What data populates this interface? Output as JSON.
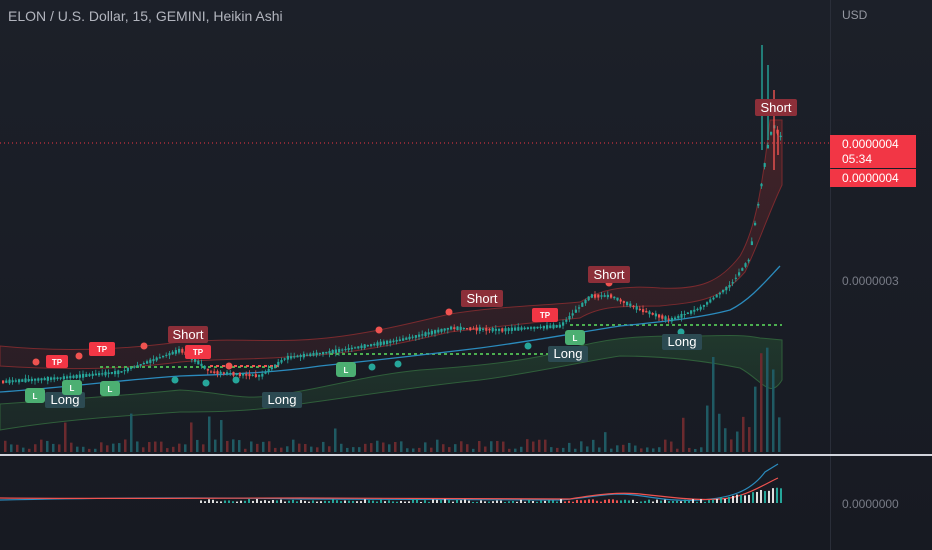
{
  "header": {
    "title": "ELON / U.S. Dollar, 15, GEMINI, Heikin Ashi"
  },
  "price_axis": {
    "currency": "USD",
    "current_price": "0.0000004",
    "countdown": "05:34",
    "current_price_repeat": "0.0000004",
    "tick_middle": "0.0000003",
    "indicator_tick": "0.0000000"
  },
  "signals": [
    {
      "type": "long",
      "label": "Long"
    },
    {
      "type": "long",
      "label": "Long"
    },
    {
      "type": "long",
      "label": "Long"
    },
    {
      "type": "long",
      "label": "Long"
    },
    {
      "type": "short",
      "label": "Short"
    },
    {
      "type": "short",
      "label": "Short"
    },
    {
      "type": "short",
      "label": "Short"
    },
    {
      "type": "short",
      "label": "Short"
    }
  ],
  "small_badges": {
    "take_profit": "TP",
    "long_entry": "L"
  },
  "colors": {
    "up": "#26a69a",
    "down": "#ef5350",
    "short_badge": "#8c2f39",
    "long_badge": "#2c4a52",
    "tp_badge": "#f23645",
    "l_badge": "#4caf72",
    "ema": "#2b8bbd",
    "support_line": "#4caf50",
    "price_line": "#f23645"
  }
}
